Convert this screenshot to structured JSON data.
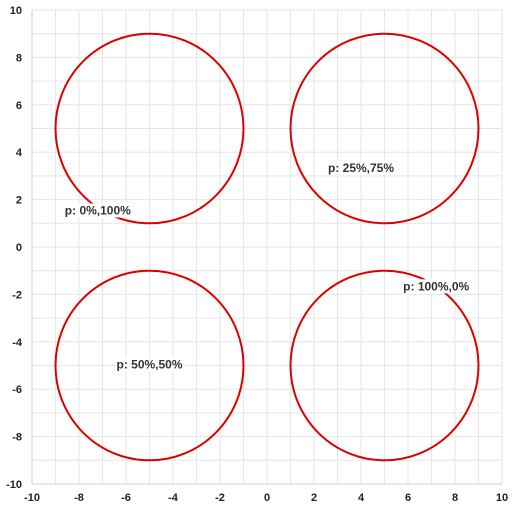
{
  "chart_data": {
    "type": "scatter",
    "title": "",
    "xlabel": "",
    "ylabel": "",
    "xlim": [
      -10,
      10
    ],
    "ylim": [
      -10,
      10
    ],
    "grid": true,
    "x_ticks": [
      "-10",
      "-8",
      "-6",
      "-4",
      "-2",
      "0",
      "2",
      "4",
      "6",
      "8",
      "10"
    ],
    "y_ticks": [
      "-10",
      "-8",
      "-6",
      "-4",
      "-2",
      "0",
      "2",
      "4",
      "6",
      "8",
      "10"
    ],
    "circle_color": "#dd0000",
    "series": [
      {
        "center": [
          -5,
          5
        ],
        "radius": 4,
        "label": "p: 0%,100%",
        "label_at": [
          -7.2,
          1.5
        ]
      },
      {
        "center": [
          5,
          5
        ],
        "radius": 4,
        "label": "p: 25%,75%",
        "label_at": [
          4,
          3.3
        ]
      },
      {
        "center": [
          -5,
          -5
        ],
        "radius": 4,
        "label": "p: 50%,50%",
        "label_at": [
          -5,
          -5
        ]
      },
      {
        "center": [
          5,
          -5
        ],
        "radius": 4,
        "label": "p: 100%,0%",
        "label_at": [
          7.2,
          -1.7
        ]
      }
    ]
  }
}
